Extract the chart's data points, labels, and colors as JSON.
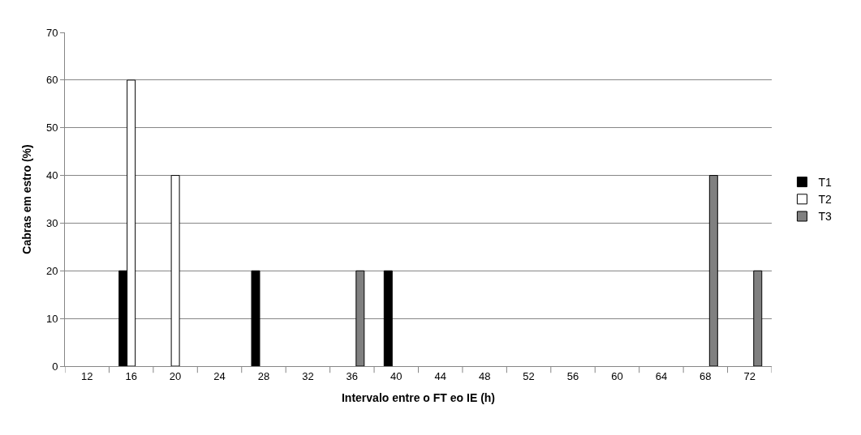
{
  "chart_data": {
    "type": "bar",
    "xlabel": "Intervalo entre o FT eo IE (h)",
    "ylabel": "Cabras em estro (%)",
    "categories": [
      "12",
      "16",
      "20",
      "24",
      "28",
      "32",
      "36",
      "40",
      "44",
      "48",
      "52",
      "56",
      "60",
      "64",
      "68",
      "72"
    ],
    "series": [
      {
        "name": "T1",
        "color": "#000000",
        "values": [
          0,
          20,
          0,
          0,
          20,
          0,
          0,
          20,
          0,
          0,
          0,
          0,
          0,
          0,
          0,
          0
        ]
      },
      {
        "name": "T2",
        "color": "#ffffff",
        "values": [
          0,
          60,
          40,
          0,
          0,
          0,
          0,
          0,
          0,
          0,
          0,
          0,
          0,
          0,
          0,
          0
        ]
      },
      {
        "name": "T3",
        "color": "#808080",
        "values": [
          0,
          0,
          0,
          0,
          0,
          0,
          20,
          0,
          0,
          0,
          0,
          0,
          0,
          0,
          40,
          20
        ]
      }
    ],
    "ylim": [
      0,
      70
    ],
    "yticks": [
      0,
      10,
      20,
      30,
      40,
      50,
      60,
      70
    ],
    "grid": "y",
    "legend": "right"
  }
}
